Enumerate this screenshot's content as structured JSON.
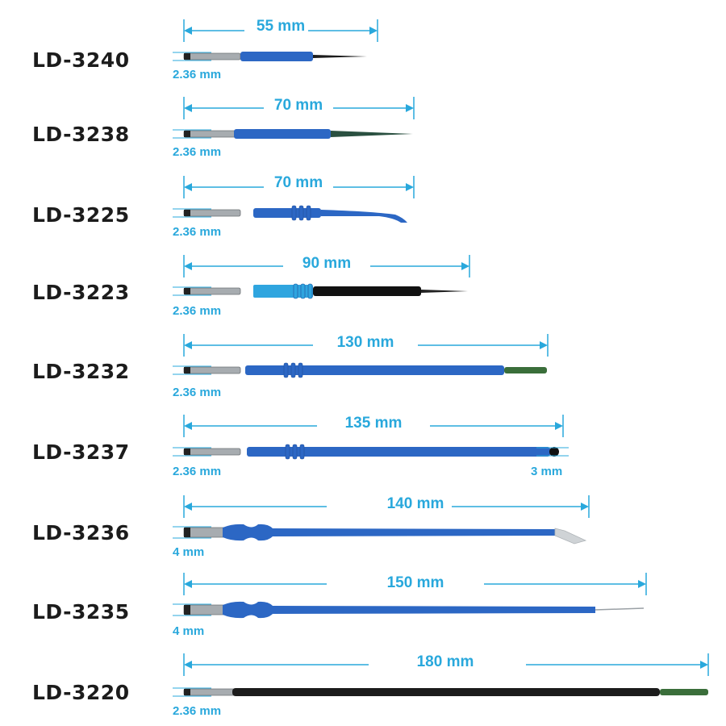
{
  "electrodes": [
    {
      "model": "LD-3240",
      "length": "55 mm",
      "diameter": "2.36 mm",
      "handle_color": "#2c67c4",
      "tip_color": "#1c1c1c"
    },
    {
      "model": "LD-3238",
      "length": "70 mm",
      "diameter": "2.36 mm",
      "handle_color": "#2c67c4",
      "tip_color": "#2a5040"
    },
    {
      "model": "LD-3225",
      "length": "70 mm",
      "diameter": "2.36 mm",
      "handle_color": "#2c67c4",
      "tip_color": "#2c67c4"
    },
    {
      "model": "LD-3223",
      "length": "90 mm",
      "diameter": "2.36 mm",
      "handle_color": "#2fa5df",
      "tip_color": "#111111"
    },
    {
      "model": "LD-3232",
      "length": "130 mm",
      "diameter": "2.36 mm",
      "handle_color": "#2c67c4",
      "tip_color": "#3a6e3a"
    },
    {
      "model": "LD-3237",
      "length": "135 mm",
      "diameter": "2.36 mm",
      "tip_diameter": "3 mm",
      "handle_color": "#2c67c4",
      "tip_color": "#111111"
    },
    {
      "model": "LD-3236",
      "length": "140 mm",
      "diameter": "4 mm",
      "handle_color": "#2c67c4",
      "tip_color": "#cfd3d6"
    },
    {
      "model": "LD-3235",
      "length": "150 mm",
      "diameter": "4 mm",
      "handle_color": "#2c67c4",
      "tip_color": "#9aa0a5"
    },
    {
      "model": "LD-3220",
      "length": "180 mm",
      "diameter": "2.36 mm",
      "handle_color": "#1c1c1c",
      "tip_color": "#3a6e3a"
    }
  ],
  "colors": {
    "dimension": "#29a8dc",
    "label": "#1c1c1c",
    "metal": "#a7acb0"
  }
}
